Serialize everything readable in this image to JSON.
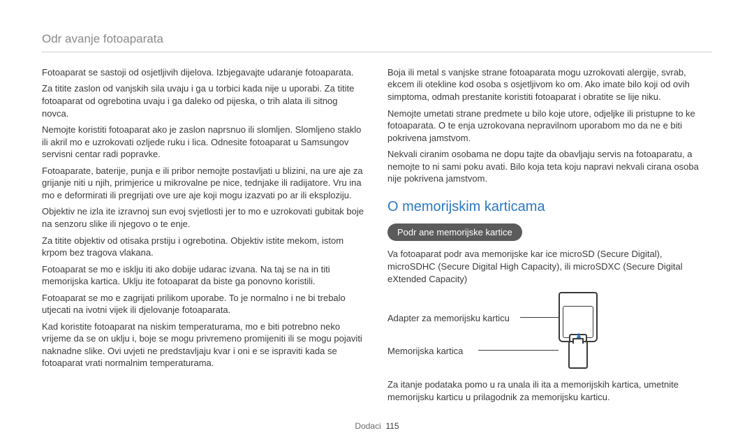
{
  "header": {
    "title": "Odr avanje fotoaparata"
  },
  "left_column": {
    "p1": "Fotoaparat se sastoji od osjetljivih dijelova. Izbjegavajte udaranje fotoaparata.",
    "p2": "Za titite zaslon od vanjskih sila  uvaju i ga u torbici kada nije u uporabi. Za titite fotoaparat od ogrebotina  uvaju i ga daleko od pijeska, o trih alata ili sitnog novca.",
    "p3": "Nemojte koristiti fotoaparat ako je zaslon naprsnuo ili slomljen. Slomljeno staklo ili akril mo e uzrokovati ozljede ruku i lica. Odnesite fotoaparat u Samsungov servisni centar radi popravke.",
    "p4": "Fotoaparate, baterije, punja e ili pribor nemojte postavljati u blizini, na ure aje za grijanje niti u njih, primjerice u mikrovalne pe nice, tednjake ili radijatore. Vru ina mo e deformirati ili pregrijati ove ure aje koji mogu izazvati po ar ili eksploziju.",
    "p5": "Objektiv ne izla ite izravnoj sun evoj svjetlosti jer to mo e uzrokovati gubitak boje na senzoru slike ili njegovo o te enje.",
    "p6": "Za titite objektiv od otisaka prstiju i ogrebotina. Objektiv  istite mekom,  istom krpom bez tragova vlakana.",
    "p7": "Fotoaparat se mo e isklju iti ako dobije udarac izvana. Na taj se na in  titi memorijska kartica. Uklju ite fotoaparat da biste ga ponovno koristili.",
    "p8": "Fotoaparat se mo e zagrijati prilikom uporabe. To je normalno i ne bi trebalo utjecati na  ivotni vijek ili djelovanje fotoaparata.",
    "p9": "Kad koristite fotoaparat na niskim temperaturama, mo e biti potrebno neko vrijeme da se on uklju i, boje se mogu privremeno promijeniti ili se mogu pojaviti naknadne slike. Ovi uvjeti ne predstavljaju kvar i oni  e se ispraviti kada se fotoaparat vrati normalnim temperaturama."
  },
  "right_column": {
    "p1": "Boja ili metal s vanjske strane fotoaparata mogu uzrokovati alergije, svrab, ekcem ili otekline kod osoba s osjetljivom ko om. Ako imate bilo koji od ovih simptoma, odmah prestanite koristiti fotoaparat i obratite se lije niku.",
    "p2": "Nemojte umetati strane predmete u bilo koje utore, odjeljke ili pristupne to ke fotoaparata. O te enja uzrokovana nepravilnom uporabom mo da ne e biti pokrivena jamstvom.",
    "p3": "Nekvali ciranim osobama ne dopu tajte da obavljaju servis na fotoaparatu, a nemojte to ni sami poku avati. Bilo koja  teta koju napravi nekvali cirana osoba nije pokrivena jamstvom.",
    "section_title": "O memorijskim karticama",
    "pill": "Podr ane memorijske kartice",
    "p4": "Va  fotoaparat podr ava memorijske kar ice microSD (Secure Digital), microSDHC (Secure Digital High Capacity), ili microSDXC (Secure Digital eXtended Capacity)",
    "label_adapter": "Adapter za memorijsku karticu",
    "label_card": "Memorijska kartica",
    "p5": "Za  itanje podataka pomo u ra unala ili  ita a memorijskih kartica, umetnite memorijsku karticu u prilagodnik za memorijsku karticu."
  },
  "footer": {
    "section": "Dodaci",
    "page": "115"
  }
}
